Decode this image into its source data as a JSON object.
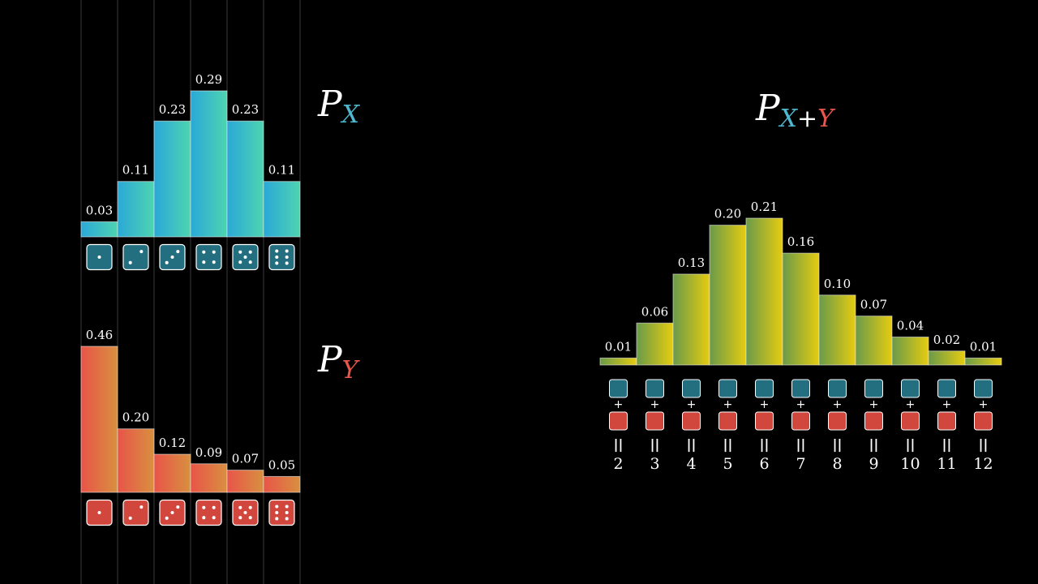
{
  "colors": {
    "x_die": "#236f80",
    "y_die": "#d2473d",
    "x_label": "#4fb8d0",
    "y_label": "#e8564c"
  },
  "chart_data": [
    {
      "type": "bar",
      "title": "P",
      "title_sub": "X",
      "categories": [
        1,
        2,
        3,
        4,
        5,
        6
      ],
      "values": [
        0.03,
        0.11,
        0.23,
        0.29,
        0.23,
        0.11
      ],
      "value_labels": [
        "0.03",
        "0.11",
        "0.23",
        "0.29",
        "0.23",
        "0.11"
      ],
      "ylim": [
        0,
        0.3
      ],
      "tick_icons": "die-faces",
      "gradient": [
        "#2aa8d8",
        "#4ed4b0"
      ]
    },
    {
      "type": "bar",
      "title": "P",
      "title_sub": "Y",
      "categories": [
        1,
        2,
        3,
        4,
        5,
        6
      ],
      "values": [
        0.46,
        0.2,
        0.12,
        0.09,
        0.07,
        0.05
      ],
      "value_labels": [
        "0.46",
        "0.20",
        "0.12",
        "0.09",
        "0.07",
        "0.05"
      ],
      "ylim": [
        0,
        0.5
      ],
      "tick_icons": "die-faces",
      "gradient": [
        "#e85448",
        "#d89040"
      ]
    },
    {
      "type": "bar",
      "title": "P",
      "title_sub": [
        "X",
        "+",
        "Y"
      ],
      "categories": [
        "2",
        "3",
        "4",
        "5",
        "6",
        "7",
        "8",
        "9",
        "10",
        "11",
        "12"
      ],
      "values": [
        0.01,
        0.06,
        0.13,
        0.2,
        0.21,
        0.16,
        0.1,
        0.07,
        0.04,
        0.02,
        0.01
      ],
      "value_labels": [
        "0.01",
        "0.06",
        "0.13",
        "0.20",
        "0.21",
        "0.16",
        "0.10",
        "0.07",
        "0.04",
        "0.02",
        "0.01"
      ],
      "ylim": [
        0,
        0.25
      ],
      "operator_plus": "+",
      "operator_equals": "||",
      "gradient": [
        "#6a9a4a",
        "#e6cc10"
      ]
    }
  ]
}
